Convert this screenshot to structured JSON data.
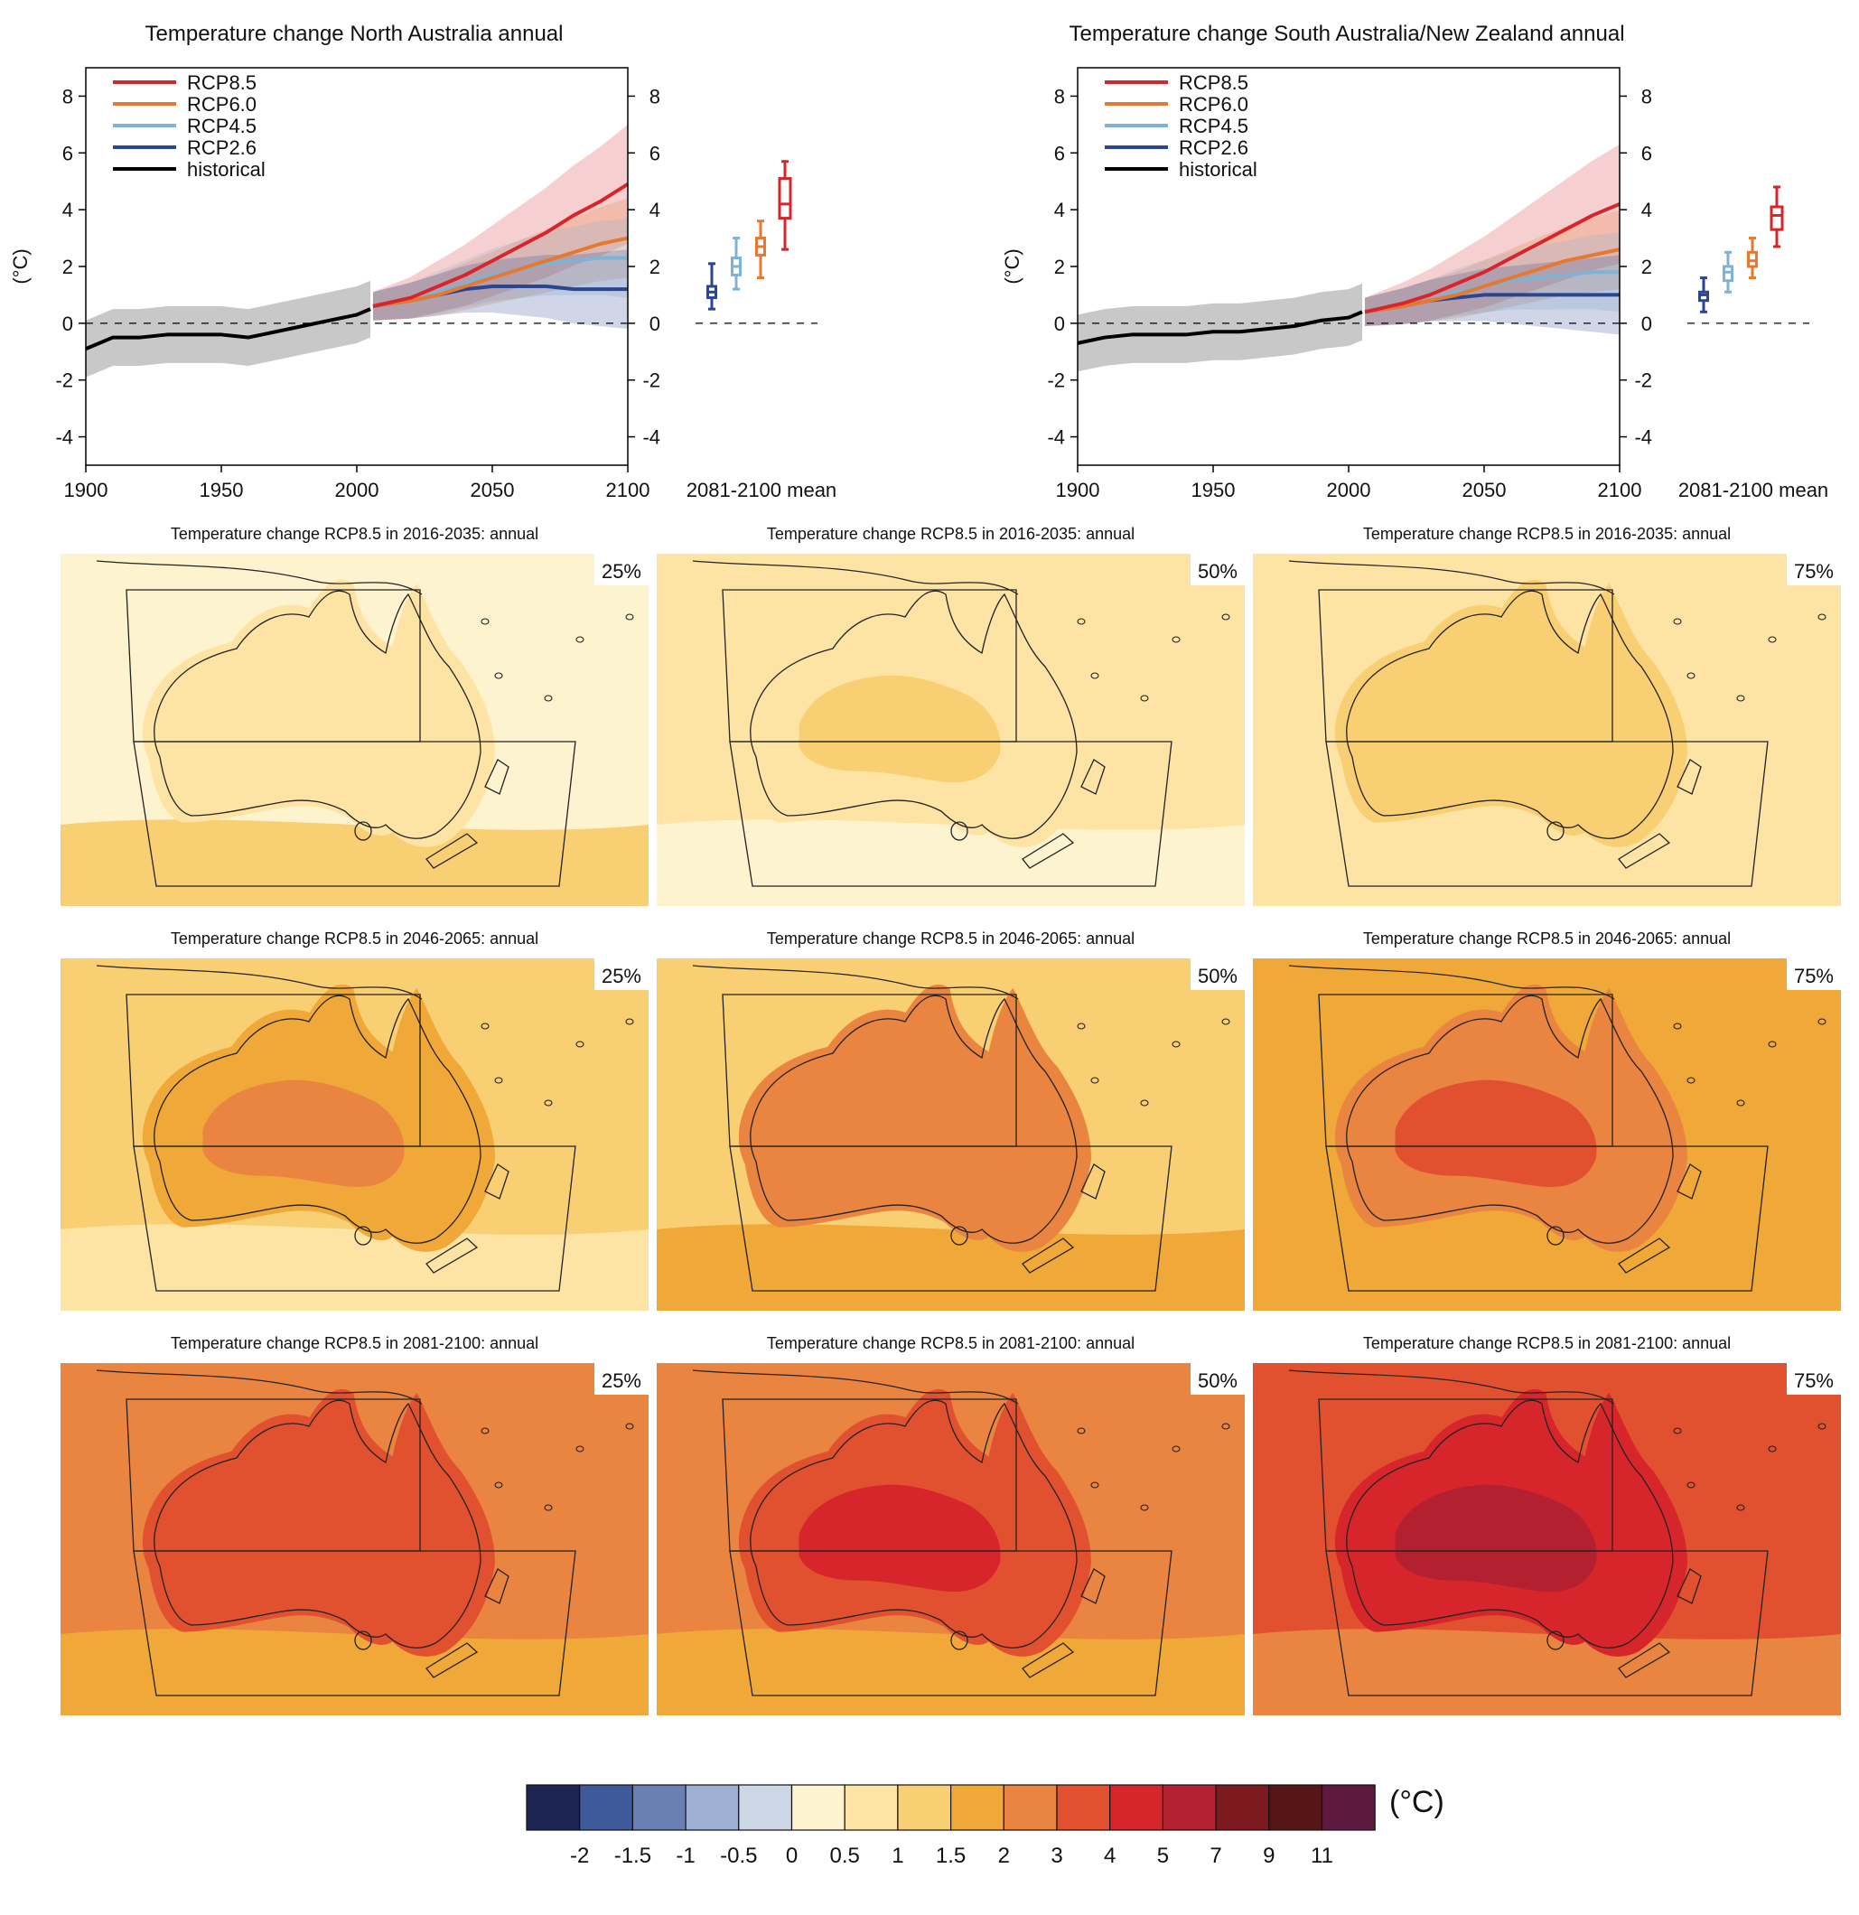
{
  "chart_data": [
    {
      "type": "line",
      "title": "Temperature change North Australia annual",
      "ylabel": "(°C)",
      "xlim": [
        1900,
        2100
      ],
      "ylim": [
        -5,
        9
      ],
      "x_ticks": [
        "1900",
        "1950",
        "2000",
        "2050",
        "2100"
      ],
      "y_ticks": [
        "-4",
        "-2",
        "0",
        "2",
        "4",
        "6",
        "8"
      ],
      "legend_position": "top-left",
      "box_axis_label": "2081-2100 mean",
      "series": [
        {
          "name": "RCP8.5",
          "color": "#d7262b",
          "x": [
            2006,
            2020,
            2030,
            2040,
            2050,
            2060,
            2070,
            2080,
            2090,
            2100
          ],
          "values": [
            0.6,
            0.9,
            1.3,
            1.7,
            2.2,
            2.7,
            3.2,
            3.8,
            4.3,
            4.9
          ]
        },
        {
          "name": "RCP6.0",
          "color": "#e6782f",
          "x": [
            2006,
            2020,
            2030,
            2040,
            2050,
            2060,
            2070,
            2080,
            2090,
            2100
          ],
          "values": [
            0.6,
            0.8,
            1.0,
            1.3,
            1.6,
            1.9,
            2.2,
            2.5,
            2.8,
            3.0
          ]
        },
        {
          "name": "RCP4.5",
          "color": "#7fb3d5",
          "x": [
            2006,
            2020,
            2030,
            2040,
            2050,
            2060,
            2070,
            2080,
            2090,
            2100
          ],
          "values": [
            0.6,
            0.8,
            1.1,
            1.4,
            1.7,
            1.9,
            2.1,
            2.2,
            2.3,
            2.3
          ]
        },
        {
          "name": "RCP2.6",
          "color": "#2a4690",
          "x": [
            2006,
            2020,
            2030,
            2040,
            2050,
            2060,
            2070,
            2080,
            2090,
            2100
          ],
          "values": [
            0.6,
            0.8,
            1.0,
            1.2,
            1.3,
            1.3,
            1.3,
            1.2,
            1.2,
            1.2
          ]
        },
        {
          "name": "historical",
          "color": "#000000",
          "x": [
            1900,
            1910,
            1920,
            1930,
            1940,
            1950,
            1960,
            1970,
            1980,
            1990,
            2000,
            2005
          ],
          "values": [
            -0.9,
            -0.5,
            -0.5,
            -0.4,
            -0.4,
            -0.4,
            -0.5,
            -0.3,
            -0.1,
            0.1,
            0.3,
            0.5
          ]
        }
      ],
      "boxes": [
        {
          "name": "RCP2.6",
          "color": "#2a4690",
          "low": 0.5,
          "q1": 0.9,
          "median": 1.1,
          "q3": 1.3,
          "high": 2.1
        },
        {
          "name": "RCP4.5",
          "color": "#7fb3d5",
          "low": 1.2,
          "q1": 1.7,
          "median": 2.0,
          "q3": 2.3,
          "high": 3.0
        },
        {
          "name": "RCP6.0",
          "color": "#e6782f",
          "low": 1.6,
          "q1": 2.4,
          "median": 2.7,
          "q3": 3.0,
          "high": 3.6
        },
        {
          "name": "RCP8.5",
          "color": "#d7262b",
          "low": 2.6,
          "q1": 3.7,
          "median": 4.2,
          "q3": 5.1,
          "high": 5.7
        }
      ]
    },
    {
      "type": "line",
      "title": "Temperature change South Australia/New Zealand annual",
      "ylabel": "(°C)",
      "xlim": [
        1900,
        2100
      ],
      "ylim": [
        -5,
        9
      ],
      "x_ticks": [
        "1900",
        "1950",
        "2000",
        "2050",
        "2100"
      ],
      "y_ticks": [
        "-4",
        "-2",
        "0",
        "2",
        "4",
        "6",
        "8"
      ],
      "legend_position": "top-left",
      "box_axis_label": "2081-2100 mean",
      "series": [
        {
          "name": "RCP8.5",
          "color": "#d7262b",
          "x": [
            2006,
            2020,
            2030,
            2040,
            2050,
            2060,
            2070,
            2080,
            2090,
            2100
          ],
          "values": [
            0.4,
            0.7,
            1.0,
            1.4,
            1.8,
            2.3,
            2.8,
            3.3,
            3.8,
            4.2
          ]
        },
        {
          "name": "RCP6.0",
          "color": "#e6782f",
          "x": [
            2006,
            2020,
            2030,
            2040,
            2050,
            2060,
            2070,
            2080,
            2090,
            2100
          ],
          "values": [
            0.4,
            0.6,
            0.8,
            1.0,
            1.3,
            1.6,
            1.9,
            2.2,
            2.4,
            2.6
          ]
        },
        {
          "name": "RCP4.5",
          "color": "#7fb3d5",
          "x": [
            2006,
            2020,
            2030,
            2040,
            2050,
            2060,
            2070,
            2080,
            2090,
            2100
          ],
          "values": [
            0.4,
            0.6,
            0.8,
            1.1,
            1.3,
            1.5,
            1.6,
            1.7,
            1.8,
            1.8
          ]
        },
        {
          "name": "RCP2.6",
          "color": "#2a4690",
          "x": [
            2006,
            2020,
            2030,
            2040,
            2050,
            2060,
            2070,
            2080,
            2090,
            2100
          ],
          "values": [
            0.4,
            0.6,
            0.8,
            0.9,
            1.0,
            1.0,
            1.0,
            1.0,
            1.0,
            1.0
          ]
        },
        {
          "name": "historical",
          "color": "#000000",
          "x": [
            1900,
            1910,
            1920,
            1930,
            1940,
            1950,
            1960,
            1970,
            1980,
            1990,
            2000,
            2005
          ],
          "values": [
            -0.7,
            -0.5,
            -0.4,
            -0.4,
            -0.4,
            -0.3,
            -0.3,
            -0.2,
            -0.1,
            0.1,
            0.2,
            0.4
          ]
        }
      ],
      "boxes": [
        {
          "name": "RCP2.6",
          "color": "#2a4690",
          "low": 0.4,
          "q1": 0.8,
          "median": 1.0,
          "q3": 1.1,
          "high": 1.6
        },
        {
          "name": "RCP4.5",
          "color": "#7fb3d5",
          "low": 1.1,
          "q1": 1.5,
          "median": 1.8,
          "q3": 2.0,
          "high": 2.5
        },
        {
          "name": "RCP6.0",
          "color": "#e6782f",
          "low": 1.6,
          "q1": 2.0,
          "median": 2.2,
          "q3": 2.5,
          "high": 3.0
        },
        {
          "name": "RCP8.5",
          "color": "#d7262b",
          "low": 2.7,
          "q1": 3.3,
          "median": 3.8,
          "q3": 4.1,
          "high": 4.8
        }
      ]
    },
    {
      "type": "heatmap",
      "maps": [
        {
          "title": "Temperature change RCP8.5 in 2016-2035: annual",
          "percentile": "25%",
          "background": "#fdf3cf",
          "regions": [
            "#fde4a4",
            "#fde4a4",
            "#f9cf73"
          ]
        },
        {
          "title": "Temperature change RCP8.5 in 2016-2035: annual",
          "percentile": "50%",
          "background": "#fde4a4",
          "regions": [
            "#fde4a4",
            "#f9cf73",
            "#fdf3cf"
          ]
        },
        {
          "title": "Temperature change RCP8.5 in 2016-2035: annual",
          "percentile": "75%",
          "background": "#fde4a4",
          "regions": [
            "#f9cf73",
            "#f9cf73",
            "#fde4a4"
          ]
        },
        {
          "title": "Temperature change RCP8.5 in 2046-2065: annual",
          "percentile": "25%",
          "background": "#f9cf73",
          "regions": [
            "#f0a838",
            "#e98541",
            "#fde4a4"
          ]
        },
        {
          "title": "Temperature change RCP8.5 in 2046-2065: annual",
          "percentile": "50%",
          "background": "#f9cf73",
          "regions": [
            "#e98541",
            "#e98541",
            "#f0a838"
          ]
        },
        {
          "title": "Temperature change RCP8.5 in 2046-2065: annual",
          "percentile": "75%",
          "background": "#f0a838",
          "regions": [
            "#e98541",
            "#e2512f",
            "#f0a838"
          ]
        },
        {
          "title": "Temperature change RCP8.5 in 2081-2100: annual",
          "percentile": "25%",
          "background": "#e98541",
          "regions": [
            "#e2512f",
            "#e2512f",
            "#f0a838"
          ]
        },
        {
          "title": "Temperature change RCP8.5 in 2081-2100: annual",
          "percentile": "50%",
          "background": "#e98541",
          "regions": [
            "#e2512f",
            "#d7262b",
            "#f0a838"
          ]
        },
        {
          "title": "Temperature change RCP8.5 in 2081-2100: annual",
          "percentile": "75%",
          "background": "#e2512f",
          "regions": [
            "#d7262b",
            "#b3202f",
            "#e98541"
          ]
        }
      ],
      "colorbar": {
        "unit": "(°C)",
        "colors": [
          "#1c2551",
          "#3e5a9b",
          "#6a7fb4",
          "#9dafd3",
          "#ced7e6",
          "#fdf3cf",
          "#fde4a4",
          "#f9cf73",
          "#f0a838",
          "#e98541",
          "#e2512f",
          "#d7262b",
          "#b3202f",
          "#7d1a20",
          "#561517",
          "#5e1a3e"
        ],
        "tick_labels": [
          "-2",
          "-1.5",
          "-1",
          "-0.5",
          "0",
          "0.5",
          "1",
          "1.5",
          "2",
          "3",
          "4",
          "5",
          "7",
          "9",
          "11"
        ]
      }
    }
  ]
}
